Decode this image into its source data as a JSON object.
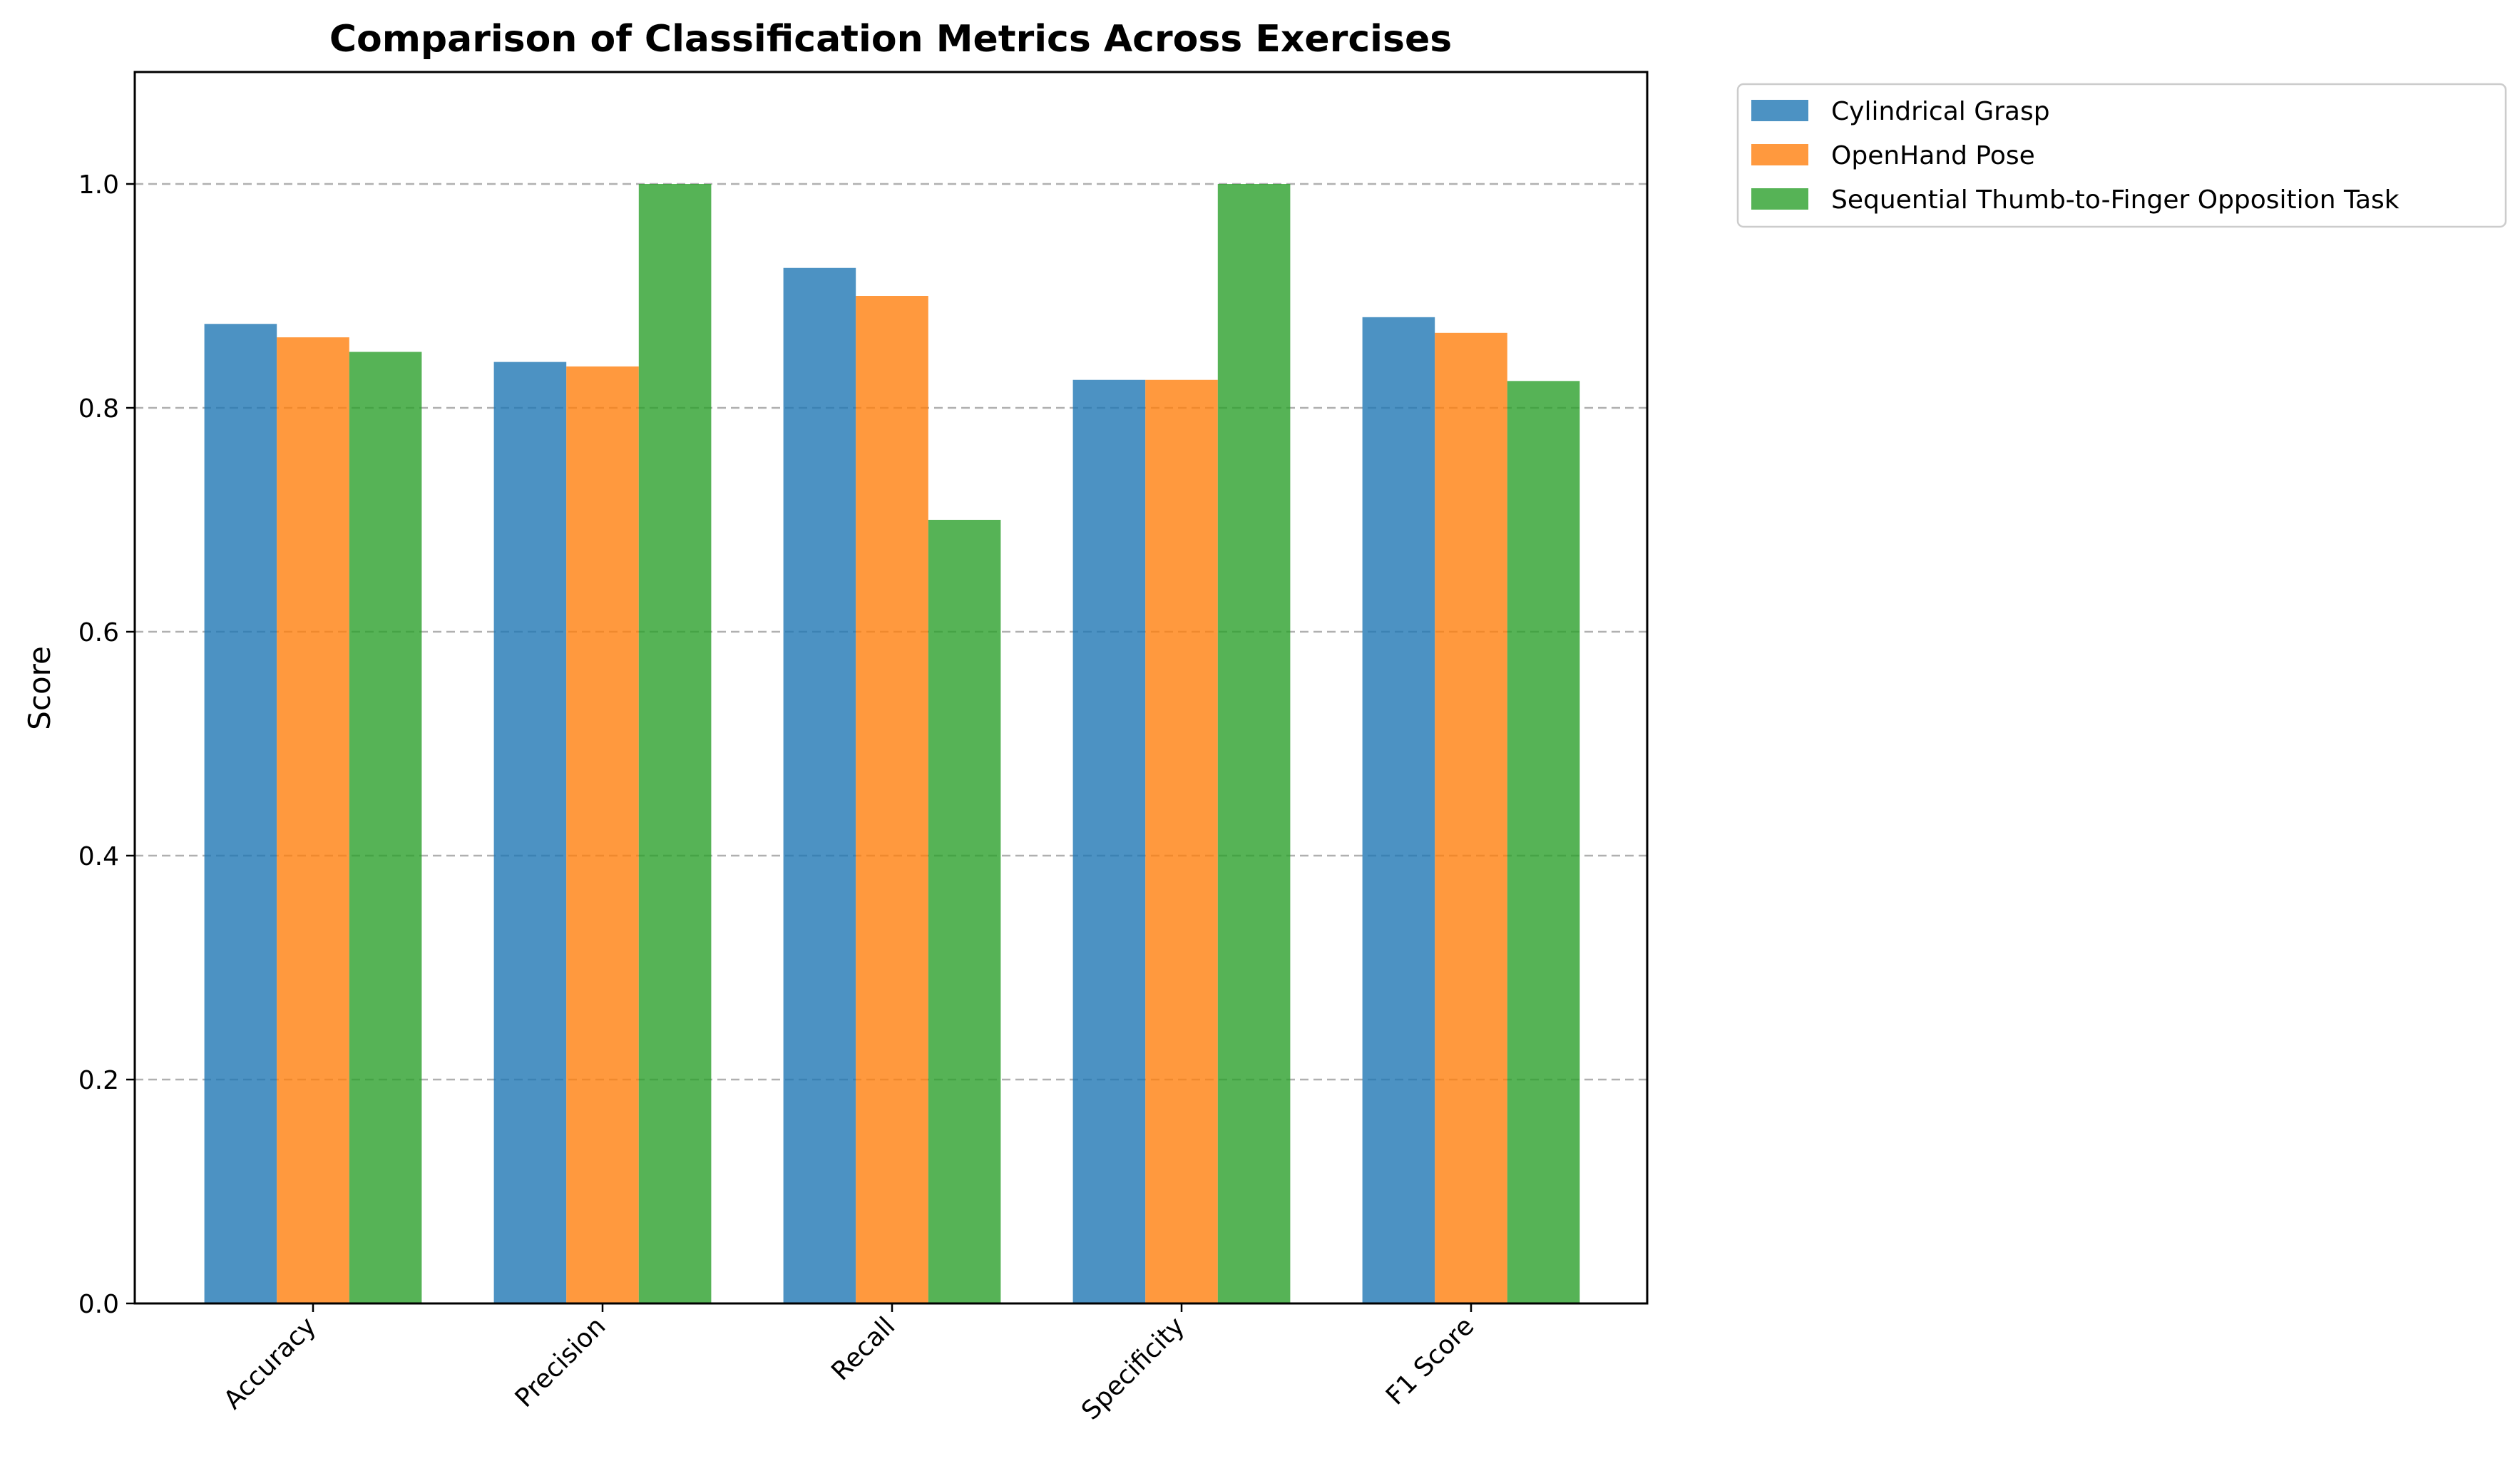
{
  "chart_data": {
    "type": "bar",
    "title": "Comparison of Classification Metrics Across Exercises",
    "xlabel": "",
    "ylabel": "Score",
    "categories": [
      "Accuracy",
      "Precision",
      "Recall",
      "Specificity",
      "F1 Score"
    ],
    "series": [
      {
        "name": "Cylindrical Grasp",
        "color": "#1f77b4",
        "values": [
          0.875,
          0.841,
          0.925,
          0.825,
          0.881
        ]
      },
      {
        "name": "OpenHand Pose",
        "color": "#ff7f0e",
        "values": [
          0.863,
          0.837,
          0.9,
          0.825,
          0.867
        ]
      },
      {
        "name": "Sequential Thumb-to-Finger Opposition Task",
        "color": "#2ca02c",
        "values": [
          0.85,
          1.0,
          0.7,
          1.0,
          0.824
        ]
      }
    ],
    "ylim": [
      0,
      1.1
    ],
    "yticks": [
      0.0,
      0.2,
      0.4,
      0.6,
      0.8,
      1.0
    ],
    "ytick_labels": [
      "0.0",
      "0.2",
      "0.4",
      "0.6",
      "0.8",
      "1.0"
    ],
    "grid": "y dashed",
    "legend_position": "outside top-right",
    "bar_opacity": 0.8
  }
}
